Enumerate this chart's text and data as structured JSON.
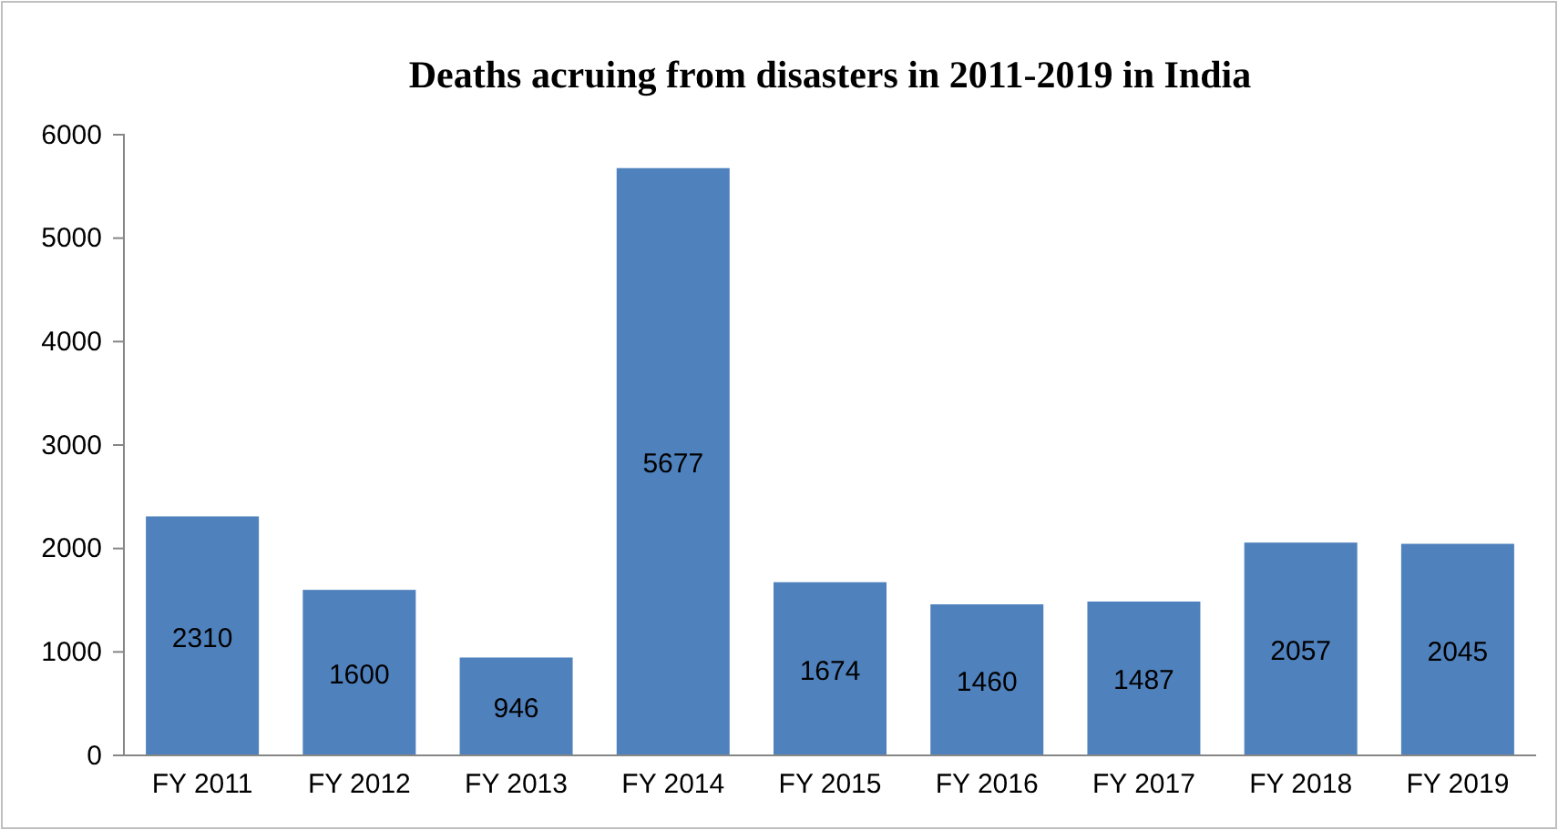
{
  "chart_data": {
    "type": "bar",
    "title": "Deaths acruing from disasters  in 2011-2019 in India",
    "categories": [
      "FY 2011",
      "FY 2012",
      "FY 2013",
      "FY 2014",
      "FY 2015",
      "FY 2016",
      "FY 2017",
      "FY 2018",
      "FY 2019"
    ],
    "values": [
      2310,
      1600,
      946,
      5677,
      1674,
      1460,
      1487,
      2057,
      2045
    ],
    "color": "#4f81bd",
    "ylim": [
      0,
      6000
    ],
    "yticks": [
      0,
      1000,
      2000,
      3000,
      4000,
      5000,
      6000
    ],
    "data_labels": true
  }
}
